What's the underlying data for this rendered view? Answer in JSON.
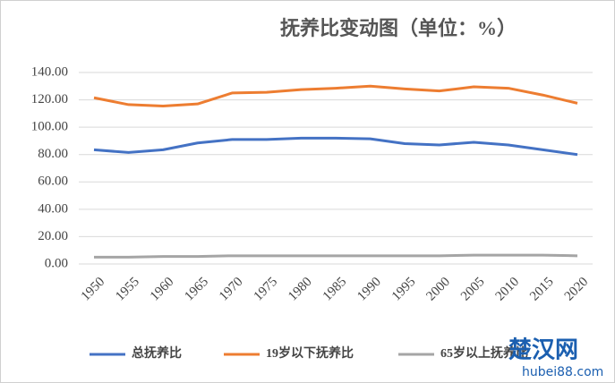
{
  "chart_data": {
    "type": "line",
    "title": "抚养比变动图（单位：%）",
    "categories": [
      "1950",
      "1955",
      "1960",
      "1965",
      "1970",
      "1975",
      "1980",
      "1985",
      "1990",
      "1995",
      "2000",
      "2005",
      "2010",
      "2015",
      "2020"
    ],
    "series": [
      {
        "name": "总抚养比",
        "color": "#4472c4",
        "values": [
          83.5,
          81.5,
          83.5,
          88.5,
          91,
          91,
          92,
          92,
          91.5,
          88,
          87,
          89,
          87,
          83.5,
          80
        ]
      },
      {
        "name": "19岁以下抚养比",
        "color": "#ed7d31",
        "values": [
          121.5,
          116.5,
          115.5,
          117,
          125,
          125.5,
          127.5,
          128.5,
          130,
          128,
          126.5,
          129.5,
          128.5,
          123.5,
          117.5
        ]
      },
      {
        "name": "65岁以上抚养比",
        "color": "#a5a5a5",
        "values": [
          5,
          5,
          5.5,
          5.5,
          6,
          6,
          6,
          6,
          6,
          6,
          6,
          6.5,
          6.5,
          6.5,
          6
        ]
      }
    ],
    "ylim": [
      0,
      140
    ],
    "yticks": [
      {
        "value": 0,
        "label": "0.00"
      },
      {
        "value": 20,
        "label": "20.00"
      },
      {
        "value": 40,
        "label": "40.00"
      },
      {
        "value": 60,
        "label": "60.00"
      },
      {
        "value": 80,
        "label": "80.00"
      },
      {
        "value": 100,
        "label": "100.00"
      },
      {
        "value": 120,
        "label": "120.00"
      },
      {
        "value": 140,
        "label": "140.00"
      }
    ],
    "grid": true,
    "watermark": {
      "name": "楚汉网",
      "url": "hubei88.com"
    }
  }
}
